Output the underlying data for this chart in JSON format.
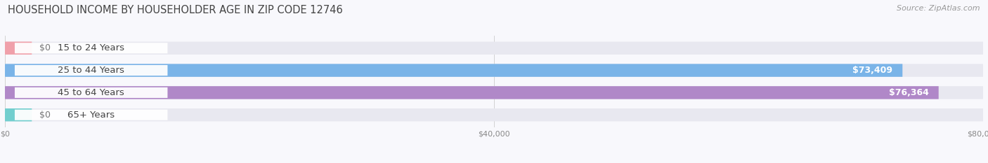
{
  "title": "HOUSEHOLD INCOME BY HOUSEHOLDER AGE IN ZIP CODE 12746",
  "source": "Source: ZipAtlas.com",
  "categories": [
    "15 to 24 Years",
    "25 to 44 Years",
    "45 to 64 Years",
    "65+ Years"
  ],
  "values": [
    0,
    73409,
    76364,
    0
  ],
  "bar_colors": [
    "#f0a0aa",
    "#7ab4e8",
    "#b088c8",
    "#72cece"
  ],
  "bar_bg_color": "#e8e8f0",
  "value_labels": [
    "$0",
    "$73,409",
    "$76,364",
    "$0"
  ],
  "xmax": 80000,
  "xticks": [
    0,
    40000,
    80000
  ],
  "xticklabels": [
    "$0",
    "$40,000",
    "$80,000"
  ],
  "title_fontsize": 10.5,
  "source_fontsize": 8,
  "bar_label_fontsize": 9.5,
  "value_label_fontsize": 9,
  "background_color": "#f8f8fc",
  "axis_bg_color": "#f8f8fc"
}
